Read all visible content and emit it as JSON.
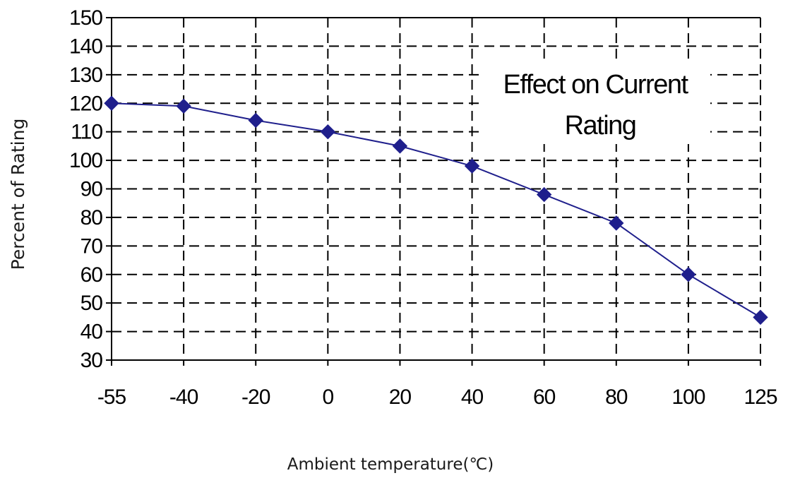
{
  "chart_data": {
    "type": "line",
    "title": "",
    "annotation": "Effect on Current Rating",
    "annotation_lines": [
      "Effect on Current",
      "Rating"
    ],
    "xlabel": "Ambient temperature(℃)",
    "ylabel": "Percent of Rating",
    "categories": [
      "-55",
      "-40",
      "-20",
      "0",
      "20",
      "40",
      "60",
      "80",
      "100",
      "125"
    ],
    "series": [
      {
        "values": [
          120,
          119,
          114,
          110,
          105,
          98,
          88,
          78,
          60,
          45
        ],
        "color": "#1f1f8c",
        "marker": "diamond"
      }
    ],
    "ylim": [
      30,
      150
    ],
    "yticks": [
      30,
      40,
      50,
      60,
      70,
      80,
      90,
      100,
      110,
      120,
      130,
      140,
      150
    ],
    "grid": true,
    "grid_style": "dashed",
    "legend": "none"
  }
}
